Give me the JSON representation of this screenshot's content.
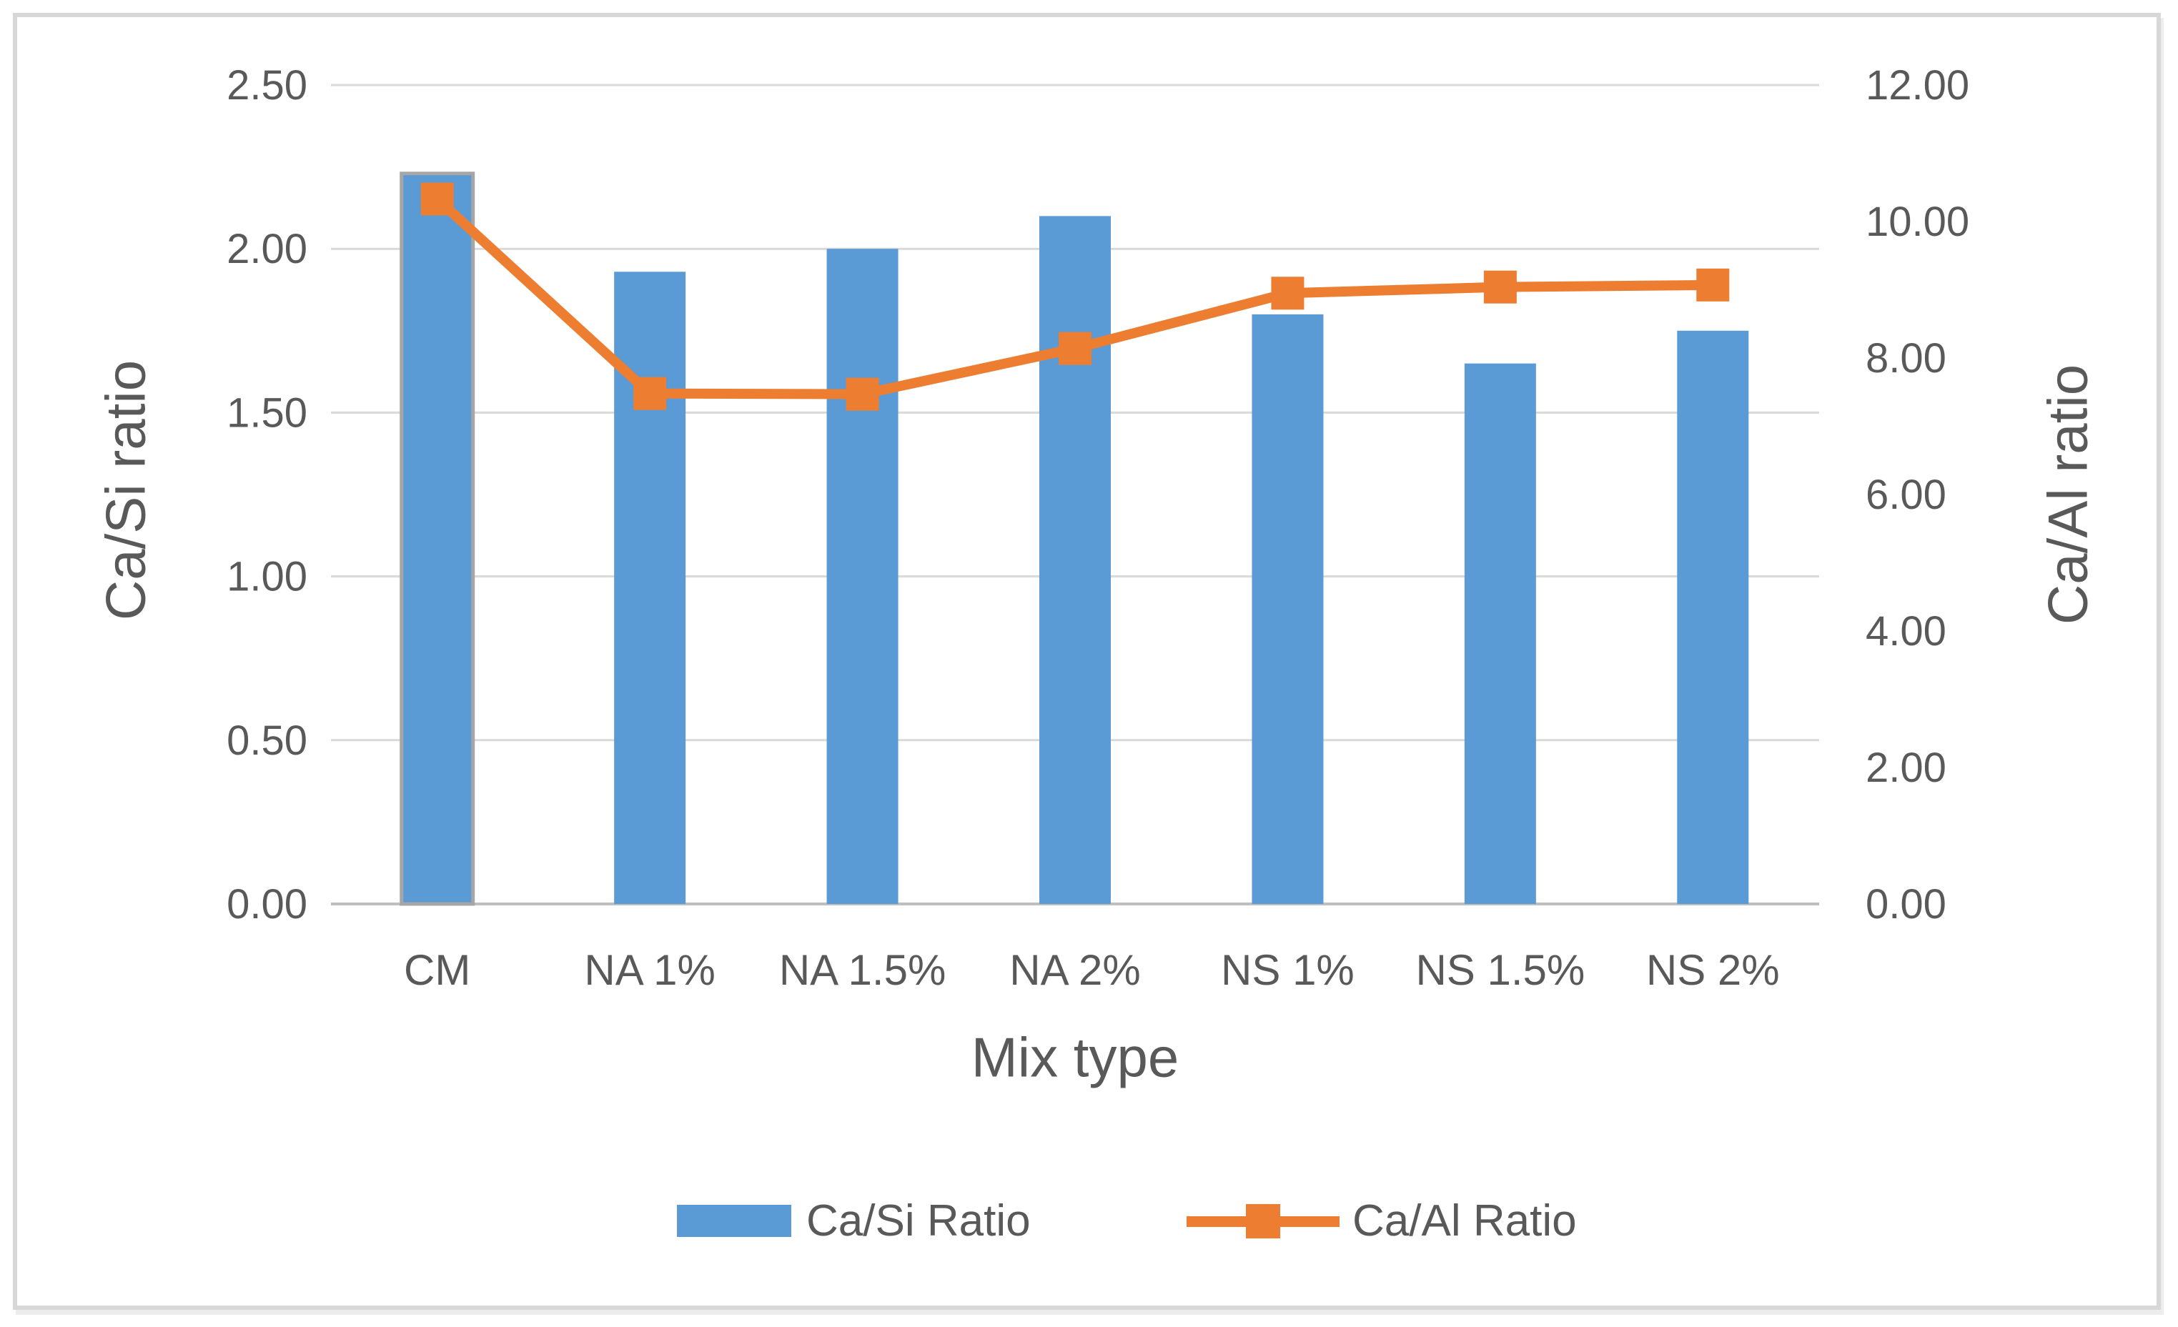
{
  "chart_data": {
    "type": "bar",
    "subtype": "combo-bar-line-dual-axis",
    "categories": [
      "CM",
      "NA 1%",
      "NA 1.5%",
      "NA 2%",
      "NS 1%",
      "NS 1.5%",
      "NS 2%"
    ],
    "series": [
      {
        "name": "Ca/Si Ratio",
        "type": "bar",
        "axis": "left",
        "color": "#5B9BD5",
        "values": [
          2.23,
          1.93,
          2.0,
          2.1,
          1.8,
          1.65,
          1.75
        ]
      },
      {
        "name": "Ca/Al Ratio",
        "type": "line",
        "axis": "right",
        "color": "#ED7D31",
        "marker": "square",
        "values": [
          10.33,
          7.48,
          7.47,
          8.14,
          8.95,
          9.04,
          9.07
        ]
      }
    ],
    "title": "",
    "xlabel": "Mix type",
    "left_axis": {
      "title": "Ca/Si ratio",
      "min": 0,
      "max": 2.5,
      "step": 0.5,
      "tick_labels": [
        "0.00",
        "0.50",
        "1.00",
        "1.50",
        "2.00",
        "2.50"
      ]
    },
    "right_axis": {
      "title": "Ca/Al ratio",
      "min": 0,
      "max": 12,
      "step": 2,
      "tick_labels": [
        "0.00",
        "2.00",
        "4.00",
        "6.00",
        "8.00",
        "10.00",
        "12.00"
      ]
    },
    "grid": true,
    "legend_position": "bottom",
    "highlight": {
      "category": "CM",
      "bar_border_color": "#A6A6A6"
    },
    "colors": {
      "gridline": "#D9D9D9",
      "axis_line": "#BFBFBF",
      "text": "#595959",
      "frame_border": "#D8D8D8",
      "background": "#FFFFFF"
    }
  }
}
